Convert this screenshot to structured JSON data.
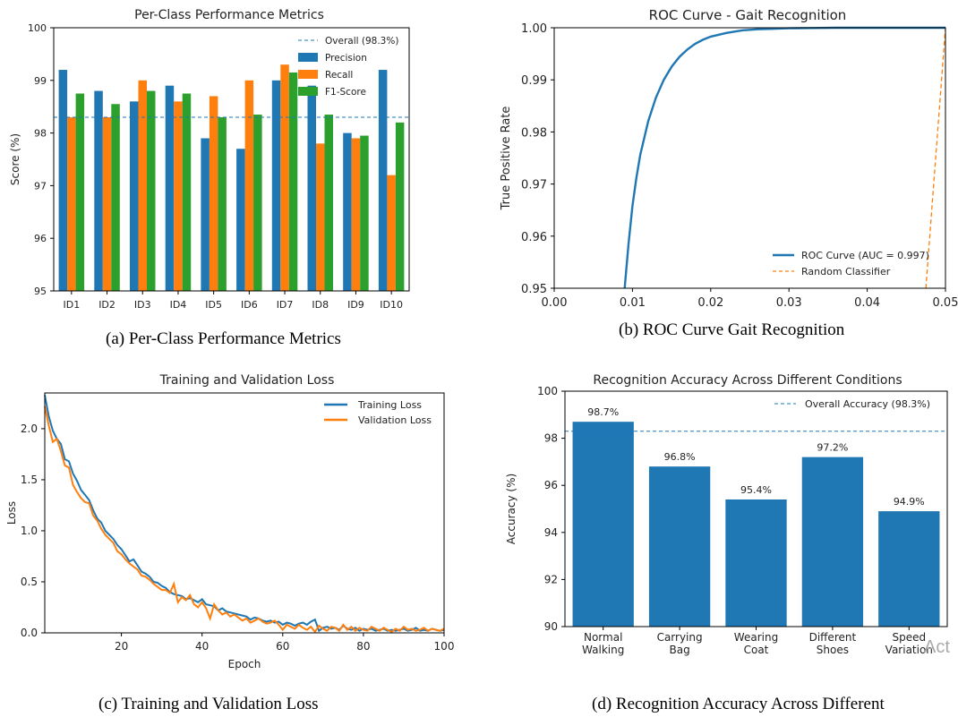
{
  "captions": {
    "a": "(a) Per-Class Performance Metrics",
    "b": "(b) ROC Curve Gait Recognition",
    "c": "(c) Training and Validation Loss",
    "d": "(d) Recognition Accuracy Across Different"
  },
  "watermark": "Act",
  "colors": {
    "blue": "#1f77b4",
    "orange": "#ff7f0e",
    "green": "#2ca02c"
  },
  "chart_data": [
    {
      "type": "bar",
      "title": "Per-Class Performance Metrics",
      "xlabel": "",
      "ylabel": "Score (%)",
      "ylim": [
        95,
        100
      ],
      "yticks": [
        "95",
        "96",
        "97",
        "98",
        "99",
        "100"
      ],
      "categories": [
        "ID1",
        "ID2",
        "ID3",
        "ID4",
        "ID5",
        "ID6",
        "ID7",
        "ID8",
        "ID9",
        "ID10"
      ],
      "series": [
        {
          "name": "Precision",
          "color": "#1f77b4",
          "values": [
            99.2,
            98.8,
            98.6,
            98.9,
            97.9,
            97.7,
            99.0,
            98.9,
            98.0,
            99.2
          ]
        },
        {
          "name": "Recall",
          "color": "#ff7f0e",
          "values": [
            98.3,
            98.3,
            99.0,
            98.6,
            98.7,
            99.0,
            99.3,
            97.8,
            97.9,
            97.2
          ]
        },
        {
          "name": "F1-Score",
          "color": "#2ca02c",
          "values": [
            98.75,
            98.55,
            98.8,
            98.75,
            98.3,
            98.35,
            99.15,
            98.35,
            97.95,
            98.2
          ]
        }
      ],
      "reference_line": {
        "name": "Overall (98.3%)",
        "value": 98.3
      },
      "legend": "top-right",
      "grid": false
    },
    {
      "type": "line",
      "title": "ROC Curve - Gait Recognition",
      "xlabel": "",
      "ylabel": "True Positive Rate",
      "xlim": [
        0,
        0.05
      ],
      "ylim": [
        0.95,
        1.0
      ],
      "xticks": [
        "0.00",
        "0.01",
        "0.02",
        "0.03",
        "0.04",
        "0.05"
      ],
      "yticks": [
        "0.95",
        "0.96",
        "0.97",
        "0.98",
        "0.99",
        "1.00"
      ],
      "series": [
        {
          "name": "ROC Curve (AUC = 0.997)",
          "color": "#1f77b4",
          "x": [
            0.009,
            0.0095,
            0.01,
            0.0105,
            0.011,
            0.012,
            0.013,
            0.014,
            0.015,
            0.016,
            0.017,
            0.018,
            0.019,
            0.02,
            0.022,
            0.024,
            0.026,
            0.028,
            0.03,
            0.033,
            0.036,
            0.04,
            0.045,
            0.05
          ],
          "y": [
            0.95,
            0.9585,
            0.9658,
            0.9712,
            0.9756,
            0.982,
            0.9866,
            0.99,
            0.9925,
            0.9944,
            0.9958,
            0.9969,
            0.9977,
            0.9983,
            0.999,
            0.9995,
            0.9997,
            0.9998,
            0.9999,
            0.99995,
            1.0,
            1.0,
            1.0,
            1.0
          ]
        },
        {
          "name": "Random Classifier",
          "color": "#ff7f0e",
          "dashed": true,
          "x": [
            0.0475,
            0.05
          ],
          "y": [
            0.95,
            1.0
          ]
        }
      ],
      "legend": "lower-right",
      "grid": false
    },
    {
      "type": "line",
      "title": "Training and Validation Loss",
      "xlabel": "Epoch",
      "ylabel": "Loss",
      "xlim": [
        1,
        100
      ],
      "ylim": [
        0,
        2.35
      ],
      "xticks": [
        "20",
        "40",
        "60",
        "80",
        "100"
      ],
      "yticks": [
        "0.0",
        "0.5",
        "1.0",
        "1.5",
        "2.0"
      ],
      "series": [
        {
          "name": "Training Loss",
          "color": "#1f77b4",
          "x": [
            1,
            2,
            3,
            4,
            5,
            6,
            7,
            8,
            9,
            10,
            11,
            12,
            13,
            14,
            15,
            16,
            17,
            18,
            19,
            20,
            21,
            22,
            23,
            24,
            25,
            26,
            27,
            28,
            29,
            30,
            31,
            32,
            33,
            34,
            35,
            36,
            37,
            38,
            39,
            40,
            41,
            42,
            43,
            44,
            45,
            46,
            47,
            48,
            49,
            50,
            51,
            52,
            53,
            54,
            55,
            56,
            57,
            58,
            59,
            60,
            61,
            62,
            63,
            64,
            65,
            66,
            67,
            68,
            69,
            70,
            71,
            72,
            73,
            74,
            75,
            76,
            77,
            78,
            79,
            80,
            81,
            82,
            83,
            84,
            85,
            86,
            87,
            88,
            89,
            90,
            91,
            92,
            93,
            94,
            95,
            96,
            97,
            98,
            99,
            100
          ],
          "y": [
            2.33,
            2.12,
            1.98,
            1.9,
            1.85,
            1.7,
            1.68,
            1.56,
            1.49,
            1.4,
            1.35,
            1.3,
            1.2,
            1.12,
            1.08,
            1.0,
            0.96,
            0.92,
            0.86,
            0.82,
            0.76,
            0.7,
            0.72,
            0.66,
            0.6,
            0.58,
            0.55,
            0.5,
            0.49,
            0.46,
            0.44,
            0.4,
            0.38,
            0.37,
            0.36,
            0.33,
            0.34,
            0.32,
            0.3,
            0.33,
            0.28,
            0.27,
            0.26,
            0.22,
            0.24,
            0.21,
            0.2,
            0.19,
            0.18,
            0.17,
            0.16,
            0.13,
            0.15,
            0.14,
            0.12,
            0.11,
            0.12,
            0.1,
            0.11,
            0.08,
            0.1,
            0.09,
            0.07,
            0.09,
            0.1,
            0.08,
            0.11,
            0.13,
            0.02,
            0.05,
            0.06,
            0.04,
            0.05,
            0.03,
            0.07,
            0.04,
            0.03,
            0.05,
            0.02,
            0.04,
            0.03,
            0.04,
            0.02,
            0.03,
            0.04,
            0.02,
            0.03,
            0.02,
            0.03,
            0.04,
            0.02,
            0.03,
            0.05,
            0.02,
            0.03,
            0.02,
            0.04,
            0.03,
            0.02,
            0.03
          ]
        },
        {
          "name": "Validation Loss",
          "color": "#ff7f0e",
          "x": [
            1,
            2,
            3,
            4,
            5,
            6,
            7,
            8,
            9,
            10,
            11,
            12,
            13,
            14,
            15,
            16,
            17,
            18,
            19,
            20,
            21,
            22,
            23,
            24,
            25,
            26,
            27,
            28,
            29,
            30,
            31,
            32,
            33,
            34,
            35,
            36,
            37,
            38,
            39,
            40,
            41,
            42,
            43,
            44,
            45,
            46,
            47,
            48,
            49,
            50,
            51,
            52,
            53,
            54,
            55,
            56,
            57,
            58,
            59,
            60,
            61,
            62,
            63,
            64,
            65,
            66,
            67,
            68,
            69,
            70,
            71,
            72,
            73,
            74,
            75,
            76,
            77,
            78,
            79,
            80,
            81,
            82,
            83,
            84,
            85,
            86,
            87,
            88,
            89,
            90,
            91,
            92,
            93,
            94,
            95,
            96,
            97,
            98,
            99,
            100
          ],
          "y": [
            2.22,
            2.03,
            1.87,
            1.9,
            1.78,
            1.64,
            1.62,
            1.45,
            1.38,
            1.32,
            1.28,
            1.27,
            1.15,
            1.1,
            1.02,
            0.96,
            0.92,
            0.88,
            0.8,
            0.77,
            0.72,
            0.68,
            0.65,
            0.62,
            0.56,
            0.55,
            0.52,
            0.48,
            0.45,
            0.42,
            0.42,
            0.39,
            0.48,
            0.3,
            0.35,
            0.32,
            0.37,
            0.28,
            0.25,
            0.3,
            0.24,
            0.14,
            0.28,
            0.22,
            0.18,
            0.2,
            0.16,
            0.18,
            0.15,
            0.12,
            0.14,
            0.1,
            0.12,
            0.14,
            0.11,
            0.09,
            0.1,
            0.12,
            0.08,
            0.03,
            0.08,
            0.06,
            0.04,
            0.08,
            0.05,
            0.03,
            0.06,
            0.01,
            0.07,
            0.04,
            0.02,
            0.06,
            0.05,
            0.02,
            0.08,
            0.03,
            0.06,
            0.02,
            0.05,
            0.03,
            0.02,
            0.06,
            0.04,
            0.02,
            0.05,
            0.03,
            0.01,
            0.04,
            0.02,
            0.06,
            0.03,
            0.04,
            0.02,
            0.03,
            0.05,
            0.02,
            0.04,
            0.03,
            0.02,
            0.04
          ]
        }
      ],
      "legend": "top-right",
      "grid": false
    },
    {
      "type": "bar",
      "title": "Recognition Accuracy Across Different Conditions",
      "xlabel": "",
      "ylabel": "Accuracy (%)",
      "ylim": [
        90,
        100
      ],
      "yticks": [
        "90",
        "92",
        "94",
        "96",
        "98",
        "100"
      ],
      "categories": [
        [
          "Normal",
          "Walking"
        ],
        [
          "Carrying",
          "Bag"
        ],
        [
          "Wearing",
          "Coat"
        ],
        [
          "Different",
          "Shoes"
        ],
        [
          "Speed",
          "Variation"
        ]
      ],
      "values": [
        98.7,
        96.8,
        95.4,
        97.2,
        94.9
      ],
      "value_labels": [
        "98.7%",
        "96.8%",
        "95.4%",
        "97.2%",
        "94.9%"
      ],
      "color": "#1f77b4",
      "reference_line": {
        "name": "Overall Accuracy (98.3%)",
        "value": 98.3
      },
      "legend": "top-right",
      "grid": false
    }
  ]
}
